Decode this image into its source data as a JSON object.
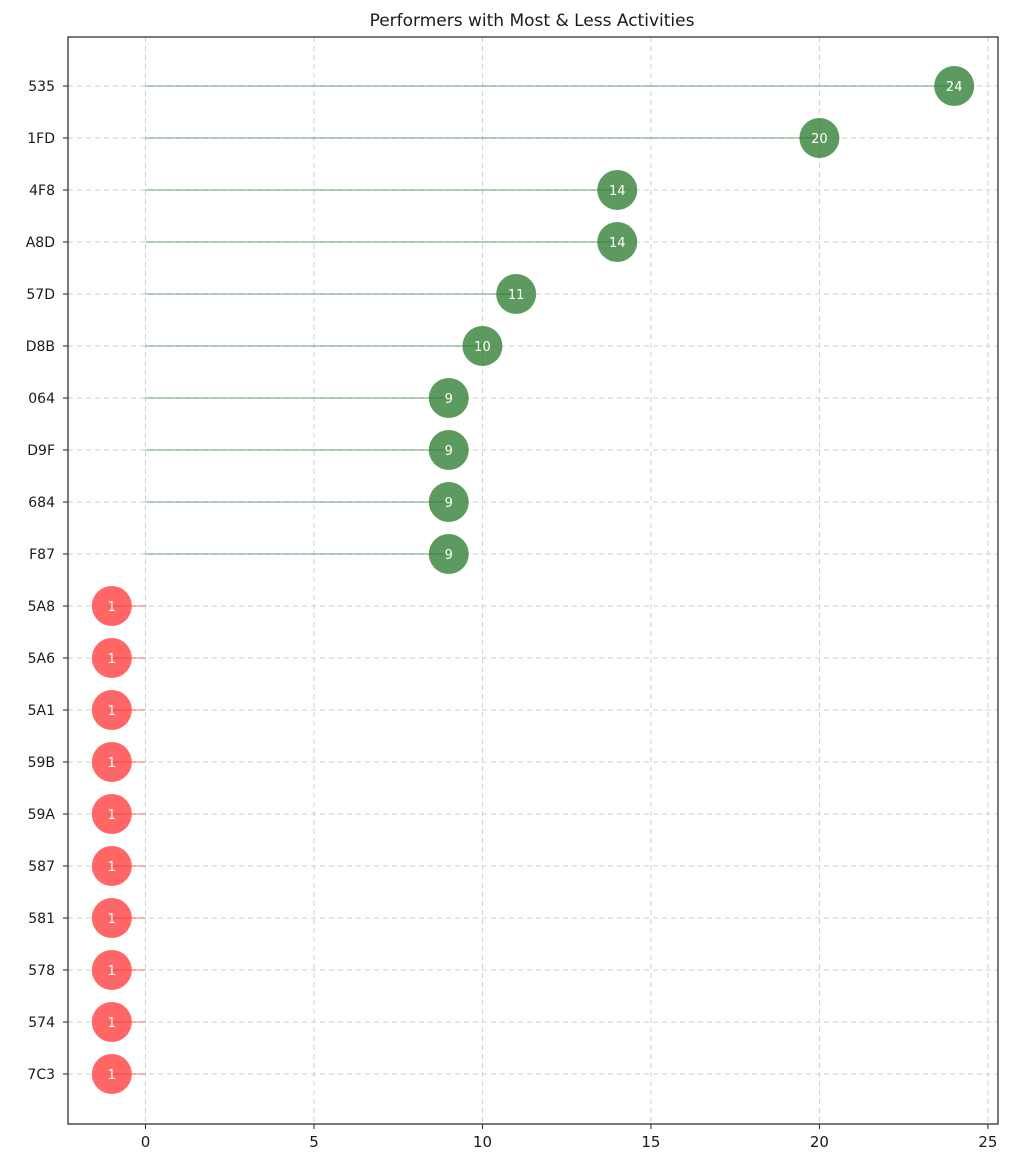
{
  "chart_data": {
    "type": "scatter",
    "subtype": "lollipop",
    "title": "Performers with Most & Less Activities",
    "xlabel": "",
    "ylabel": "",
    "xlim": [
      -2.3,
      25.3
    ],
    "xticks": [
      0,
      5,
      10,
      15,
      20,
      25
    ],
    "grid": true,
    "legend": "none",
    "categories": [
      "535",
      "1FD",
      "4F8",
      "A8D",
      "57D",
      "D8B",
      "064",
      "D9F",
      "684",
      "F87",
      "5A8",
      "5A6",
      "5A1",
      "59B",
      "59A",
      "587",
      "581",
      "578",
      "574",
      "7C3"
    ],
    "series": [
      {
        "group": "most",
        "color": "#2e7d32",
        "categories": [
          "535",
          "1FD",
          "4F8",
          "A8D",
          "57D",
          "D8B",
          "064",
          "D9F",
          "684",
          "F87"
        ],
        "values": [
          24,
          20,
          14,
          14,
          11,
          10,
          9,
          9,
          9,
          9
        ],
        "labels": [
          "24",
          "20",
          "14",
          "14",
          "11",
          "10",
          "9",
          "9",
          "9",
          "9"
        ]
      },
      {
        "group": "less",
        "color": "#ff3b3b",
        "categories": [
          "5A8",
          "5A6",
          "5A1",
          "59B",
          "59A",
          "587",
          "581",
          "578",
          "574",
          "7C3"
        ],
        "values": [
          -1,
          -1,
          -1,
          -1,
          -1,
          -1,
          -1,
          -1,
          -1,
          -1
        ],
        "labels": [
          "1",
          "1",
          "1",
          "1",
          "1",
          "1",
          "1",
          "1",
          "1",
          "1"
        ]
      }
    ]
  }
}
